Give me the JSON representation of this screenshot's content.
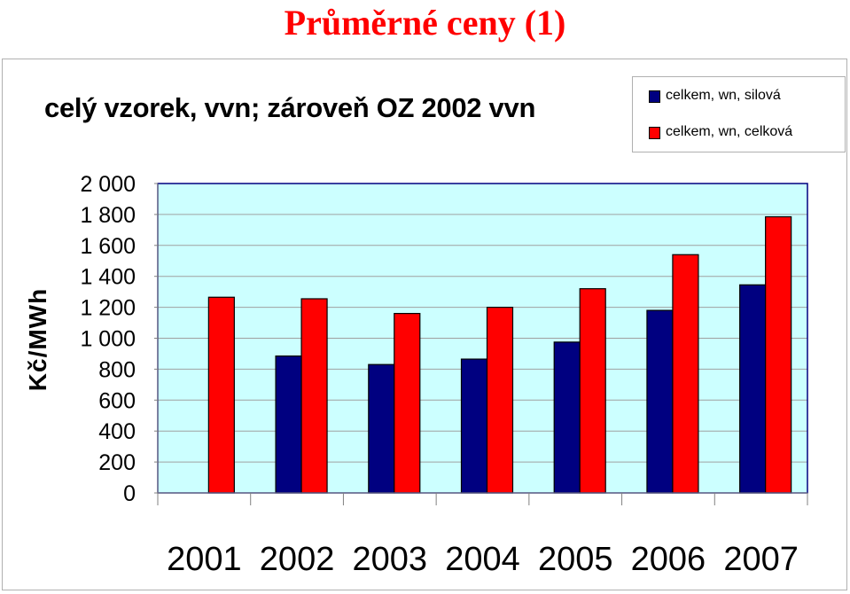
{
  "page_title": "Průměrné ceny (1)",
  "chart_data": {
    "type": "bar",
    "title": "celý vzorek, vvn; zároveň OZ 2002 vvn",
    "ylabel": "Kč/MWh",
    "xlabel": "",
    "categories": [
      "2001",
      "2002",
      "2003",
      "2004",
      "2005",
      "2006",
      "2007"
    ],
    "series": [
      {
        "name": "celkem, wn, silová",
        "color": "#000080",
        "values": [
          null,
          885,
          830,
          865,
          975,
          1180,
          1345
        ]
      },
      {
        "name": "celkem, wn, celková",
        "color": "#ff0000",
        "values": [
          1265,
          1255,
          1160,
          1200,
          1320,
          1540,
          1785
        ]
      }
    ],
    "ylim": [
      0,
      2000
    ],
    "yticks": [
      0,
      200,
      400,
      600,
      800,
      1000,
      1200,
      1400,
      1600,
      1800,
      2000
    ],
    "ytick_labels": [
      "0",
      "200",
      "400",
      "600",
      "800",
      "1 000",
      "1 200",
      "1 400",
      "1 600",
      "1 800",
      "2 000"
    ],
    "plot_background": "#ccffff",
    "grid": true,
    "legend_position": "top-right"
  }
}
